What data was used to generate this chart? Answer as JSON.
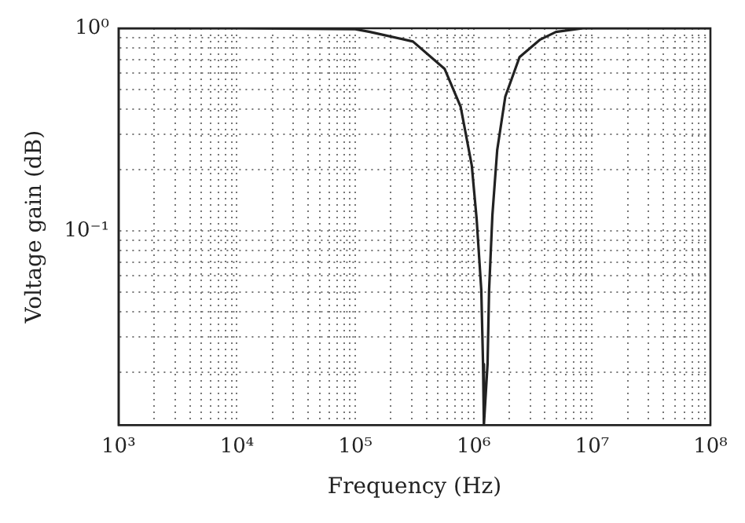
{
  "chart_data": {
    "type": "line",
    "xlabel": "Frequency (Hz)",
    "ylabel": "Voltage gain (dB)",
    "log": "xy",
    "grid": true,
    "legend": false,
    "marker": "none",
    "line_style": "solid",
    "x": [
      1000,
      10000,
      100000,
      133000,
      307000,
      569000,
      776000,
      964000,
      1060000,
      1160000,
      1200000,
      1220000,
      1310000,
      1350000,
      1440000,
      1580000,
      1850000,
      2440000,
      3650000,
      4960000,
      8400000,
      100000000
    ],
    "series": [
      {
        "color": "#222222",
        "values": [
          1,
          1,
          0.99,
          0.96,
          0.86,
          0.63,
          0.41,
          0.21,
          0.114,
          0.051,
          0.022,
          0.011,
          0.022,
          0.051,
          0.12,
          0.25,
          0.46,
          0.72,
          0.88,
          0.96,
          1,
          1
        ]
      }
    ],
    "xlim": [
      1000,
      100000000
    ],
    "ylim": [
      0.011,
      1
    ],
    "xticks": [
      {
        "value": 1000,
        "label": "10³"
      },
      {
        "value": 2000,
        "label": null
      },
      {
        "value": 3000,
        "label": null
      },
      {
        "value": 4000,
        "label": null
      },
      {
        "value": 5000,
        "label": null
      },
      {
        "value": 6000,
        "label": null
      },
      {
        "value": 7000,
        "label": null
      },
      {
        "value": 8000,
        "label": null
      },
      {
        "value": 9000,
        "label": null
      },
      {
        "value": 10000,
        "label": "10⁴"
      },
      {
        "value": 20000,
        "label": null
      },
      {
        "value": 30000,
        "label": null
      },
      {
        "value": 40000,
        "label": null
      },
      {
        "value": 50000,
        "label": null
      },
      {
        "value": 60000,
        "label": null
      },
      {
        "value": 70000,
        "label": null
      },
      {
        "value": 80000,
        "label": null
      },
      {
        "value": 90000,
        "label": null
      },
      {
        "value": 100000,
        "label": "10⁵"
      },
      {
        "value": 200000,
        "label": null
      },
      {
        "value": 300000,
        "label": null
      },
      {
        "value": 400000,
        "label": null
      },
      {
        "value": 500000,
        "label": null
      },
      {
        "value": 600000,
        "label": null
      },
      {
        "value": 700000,
        "label": null
      },
      {
        "value": 800000,
        "label": null
      },
      {
        "value": 900000,
        "label": null
      },
      {
        "value": 1000000,
        "label": "10⁶"
      },
      {
        "value": 2000000,
        "label": null
      },
      {
        "value": 3000000,
        "label": null
      },
      {
        "value": 4000000,
        "label": null
      },
      {
        "value": 5000000,
        "label": null
      },
      {
        "value": 6000000,
        "label": null
      },
      {
        "value": 7000000,
        "label": null
      },
      {
        "value": 8000000,
        "label": null
      },
      {
        "value": 9000000,
        "label": null
      },
      {
        "value": 10000000,
        "label": "10⁷"
      },
      {
        "value": 20000000,
        "label": null
      },
      {
        "value": 30000000,
        "label": null
      },
      {
        "value": 40000000,
        "label": null
      },
      {
        "value": 50000000,
        "label": null
      },
      {
        "value": 60000000,
        "label": null
      },
      {
        "value": 70000000,
        "label": null
      },
      {
        "value": 80000000,
        "label": null
      },
      {
        "value": 90000000,
        "label": null
      },
      {
        "value": 100000000,
        "label": "10⁸"
      }
    ],
    "yticks": [
      {
        "value": 0.02,
        "label": null
      },
      {
        "value": 0.03,
        "label": null
      },
      {
        "value": 0.04,
        "label": null
      },
      {
        "value": 0.05,
        "label": null
      },
      {
        "value": 0.06,
        "label": null
      },
      {
        "value": 0.07,
        "label": null
      },
      {
        "value": 0.08,
        "label": null
      },
      {
        "value": 0.09,
        "label": null
      },
      {
        "value": 0.1,
        "label": "10⁻¹"
      },
      {
        "value": 0.2,
        "label": null
      },
      {
        "value": 0.3,
        "label": null
      },
      {
        "value": 0.4,
        "label": null
      },
      {
        "value": 0.5,
        "label": null
      },
      {
        "value": 0.6,
        "label": null
      },
      {
        "value": 0.7,
        "label": null
      },
      {
        "value": 0.8,
        "label": null
      },
      {
        "value": 0.9,
        "label": null
      },
      {
        "value": 1,
        "label": "10⁰"
      }
    ]
  }
}
